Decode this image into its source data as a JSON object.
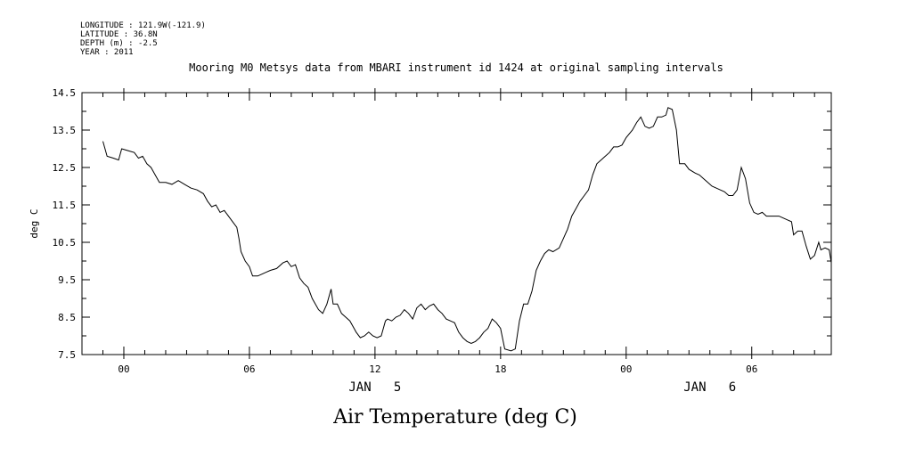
{
  "header": {
    "metadata": [
      "LONGITUDE : 121.9W(-121.9)",
      "LATITUDE : 36.8N",
      "DEPTH (m) : -2.5",
      "YEAR : 2011"
    ],
    "title": "Mooring M0 Metsys data from MBARI instrument id 1424 at original sampling intervals"
  },
  "footer": {
    "caption": "Air Temperature (deg C)"
  },
  "chart_data": {
    "type": "line",
    "title": "Mooring M0 Metsys data from MBARI instrument id 1424 at original sampling intervals",
    "ylabel": "deg C",
    "xlabel": "",
    "ylim": [
      7.5,
      14.5
    ],
    "xlim_hours_from_jan5_00": [
      -2,
      33.8
    ],
    "grid": false,
    "y_ticks": [
      "14.5",
      "13.5",
      "12.5",
      "11.5",
      "10.5",
      "9.5",
      "8.5",
      "7.5"
    ],
    "x_ticks": [
      {
        "hour": 0,
        "label": "00"
      },
      {
        "hour": 6,
        "label": "06"
      },
      {
        "hour": 12,
        "label": "12"
      },
      {
        "hour": 18,
        "label": "18"
      },
      {
        "hour": 24,
        "label": "00"
      },
      {
        "hour": 30,
        "label": "06"
      }
    ],
    "date_labels": [
      {
        "hour": 12,
        "label": "JAN   5"
      },
      {
        "hour": 28,
        "label": "JAN   6"
      }
    ],
    "series": [
      {
        "color": "#000000",
        "points": [
          [
            -1.0,
            13.2
          ],
          [
            -0.8,
            12.8
          ],
          [
            -0.5,
            12.75
          ],
          [
            -0.25,
            12.7
          ],
          [
            -0.1,
            13.0
          ],
          [
            0.2,
            12.95
          ],
          [
            0.5,
            12.9
          ],
          [
            0.7,
            12.75
          ],
          [
            0.9,
            12.8
          ],
          [
            1.1,
            12.6
          ],
          [
            1.3,
            12.5
          ],
          [
            1.5,
            12.3
          ],
          [
            1.7,
            12.1
          ],
          [
            2.0,
            12.1
          ],
          [
            2.3,
            12.05
          ],
          [
            2.6,
            12.15
          ],
          [
            2.9,
            12.05
          ],
          [
            3.2,
            11.95
          ],
          [
            3.5,
            11.9
          ],
          [
            3.8,
            11.8
          ],
          [
            4.0,
            11.6
          ],
          [
            4.2,
            11.45
          ],
          [
            4.4,
            11.5
          ],
          [
            4.6,
            11.3
          ],
          [
            4.8,
            11.35
          ],
          [
            5.0,
            11.2
          ],
          [
            5.2,
            11.05
          ],
          [
            5.4,
            10.9
          ],
          [
            5.5,
            10.6
          ],
          [
            5.6,
            10.25
          ],
          [
            5.8,
            10.0
          ],
          [
            6.0,
            9.85
          ],
          [
            6.15,
            9.6
          ],
          [
            6.4,
            9.6
          ],
          [
            6.6,
            9.65
          ],
          [
            6.8,
            9.7
          ],
          [
            7.0,
            9.75
          ],
          [
            7.3,
            9.8
          ],
          [
            7.6,
            9.95
          ],
          [
            7.8,
            10.0
          ],
          [
            8.0,
            9.85
          ],
          [
            8.2,
            9.9
          ],
          [
            8.4,
            9.55
          ],
          [
            8.6,
            9.4
          ],
          [
            8.8,
            9.3
          ],
          [
            9.0,
            9.0
          ],
          [
            9.3,
            8.7
          ],
          [
            9.5,
            8.6
          ],
          [
            9.7,
            8.85
          ],
          [
            9.9,
            9.25
          ],
          [
            10.0,
            8.85
          ],
          [
            10.2,
            8.85
          ],
          [
            10.4,
            8.6
          ],
          [
            10.6,
            8.5
          ],
          [
            10.8,
            8.4
          ],
          [
            11.0,
            8.2
          ],
          [
            11.1,
            8.1
          ],
          [
            11.3,
            7.95
          ],
          [
            11.5,
            8.0
          ],
          [
            11.7,
            8.1
          ],
          [
            11.9,
            8.0
          ],
          [
            12.1,
            7.95
          ],
          [
            12.3,
            8.0
          ],
          [
            12.5,
            8.4
          ],
          [
            12.6,
            8.45
          ],
          [
            12.8,
            8.4
          ],
          [
            13.0,
            8.5
          ],
          [
            13.2,
            8.55
          ],
          [
            13.4,
            8.7
          ],
          [
            13.6,
            8.6
          ],
          [
            13.8,
            8.45
          ],
          [
            14.0,
            8.75
          ],
          [
            14.2,
            8.85
          ],
          [
            14.4,
            8.7
          ],
          [
            14.6,
            8.8
          ],
          [
            14.8,
            8.85
          ],
          [
            15.0,
            8.7
          ],
          [
            15.2,
            8.6
          ],
          [
            15.4,
            8.45
          ],
          [
            15.6,
            8.4
          ],
          [
            15.8,
            8.35
          ],
          [
            16.0,
            8.1
          ],
          [
            16.2,
            7.95
          ],
          [
            16.4,
            7.85
          ],
          [
            16.6,
            7.8
          ],
          [
            16.8,
            7.85
          ],
          [
            17.0,
            7.95
          ],
          [
            17.2,
            8.1
          ],
          [
            17.4,
            8.2
          ],
          [
            17.6,
            8.45
          ],
          [
            17.8,
            8.35
          ],
          [
            18.0,
            8.2
          ],
          [
            18.2,
            7.65
          ],
          [
            18.5,
            7.6
          ],
          [
            18.7,
            7.65
          ],
          [
            18.9,
            8.4
          ],
          [
            19.1,
            8.85
          ],
          [
            19.3,
            8.85
          ],
          [
            19.5,
            9.2
          ],
          [
            19.7,
            9.75
          ],
          [
            19.9,
            10.0
          ],
          [
            20.1,
            10.2
          ],
          [
            20.3,
            10.3
          ],
          [
            20.5,
            10.25
          ],
          [
            20.8,
            10.35
          ],
          [
            21.0,
            10.6
          ],
          [
            21.2,
            10.85
          ],
          [
            21.4,
            11.2
          ],
          [
            21.6,
            11.4
          ],
          [
            21.8,
            11.6
          ],
          [
            22.0,
            11.75
          ],
          [
            22.2,
            11.9
          ],
          [
            22.4,
            12.3
          ],
          [
            22.6,
            12.6
          ],
          [
            22.8,
            12.7
          ],
          [
            23.0,
            12.8
          ],
          [
            23.2,
            12.9
          ],
          [
            23.4,
            13.05
          ],
          [
            23.6,
            13.05
          ],
          [
            23.8,
            13.1
          ],
          [
            24.0,
            13.3
          ],
          [
            24.3,
            13.5
          ],
          [
            24.5,
            13.7
          ],
          [
            24.7,
            13.85
          ],
          [
            24.9,
            13.6
          ],
          [
            25.1,
            13.55
          ],
          [
            25.3,
            13.6
          ],
          [
            25.5,
            13.85
          ],
          [
            25.7,
            13.85
          ],
          [
            25.9,
            13.9
          ],
          [
            26.0,
            14.1
          ],
          [
            26.2,
            14.05
          ],
          [
            26.4,
            13.5
          ],
          [
            26.55,
            12.6
          ],
          [
            26.8,
            12.6
          ],
          [
            27.0,
            12.45
          ],
          [
            27.3,
            12.35
          ],
          [
            27.5,
            12.3
          ],
          [
            27.7,
            12.2
          ],
          [
            27.9,
            12.1
          ],
          [
            28.1,
            12.0
          ],
          [
            28.3,
            11.95
          ],
          [
            28.5,
            11.9
          ],
          [
            28.7,
            11.85
          ],
          [
            28.9,
            11.75
          ],
          [
            29.1,
            11.75
          ],
          [
            29.3,
            11.9
          ],
          [
            29.5,
            12.5
          ],
          [
            29.7,
            12.2
          ],
          [
            29.9,
            11.55
          ],
          [
            30.1,
            11.3
          ],
          [
            30.3,
            11.25
          ],
          [
            30.5,
            11.3
          ],
          [
            30.7,
            11.2
          ],
          [
            31.0,
            11.2
          ],
          [
            31.3,
            11.2
          ],
          [
            31.5,
            11.15
          ],
          [
            31.7,
            11.1
          ],
          [
            31.9,
            11.05
          ],
          [
            32.0,
            10.7
          ],
          [
            32.2,
            10.8
          ],
          [
            32.4,
            10.8
          ],
          [
            32.6,
            10.4
          ],
          [
            32.8,
            10.05
          ],
          [
            33.0,
            10.15
          ],
          [
            33.2,
            10.5
          ],
          [
            33.3,
            10.3
          ],
          [
            33.5,
            10.35
          ],
          [
            33.7,
            10.3
          ],
          [
            33.8,
            9.95
          ]
        ]
      }
    ]
  }
}
